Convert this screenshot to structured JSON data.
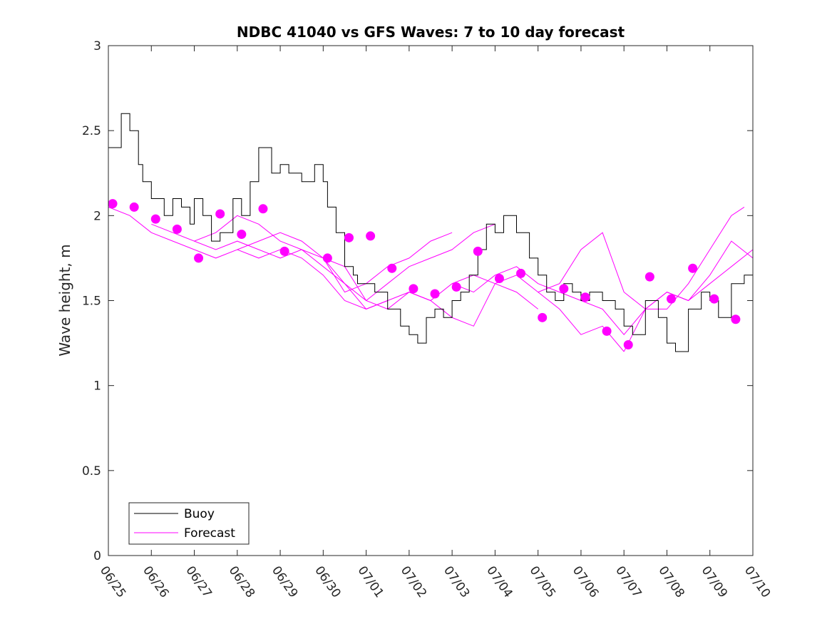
{
  "chart_data": {
    "type": "line",
    "title": "NDBC 41040 vs GFS Waves: 7 to 10 day forecast",
    "xlabel": "",
    "ylabel": "Wave height, m",
    "ylim": [
      0,
      3
    ],
    "yticks": [
      "0",
      "0.5",
      "1",
      "1.5",
      "2",
      "2.5",
      "3"
    ],
    "xlim_days": [
      0,
      15
    ],
    "xticks": [
      "06/25",
      "06/26",
      "06/27",
      "06/28",
      "06/29",
      "06/30",
      "07/01",
      "07/02",
      "07/03",
      "07/04",
      "07/05",
      "07/06",
      "07/07",
      "07/08",
      "07/09",
      "07/10"
    ],
    "grid": false,
    "legend": {
      "placement": "bottom-left",
      "entries": [
        "Buoy",
        "Forecast"
      ]
    },
    "colors": {
      "buoy": "#000000",
      "forecast": "#ff00ff"
    },
    "buoy_x": [
      0,
      0.3,
      0.5,
      0.7,
      0.8,
      1.0,
      1.3,
      1.5,
      1.7,
      1.9,
      2.0,
      2.2,
      2.4,
      2.6,
      2.9,
      3.1,
      3.3,
      3.5,
      3.8,
      4.0,
      4.2,
      4.5,
      4.8,
      5.0,
      5.1,
      5.3,
      5.5,
      5.7,
      5.8,
      6.0,
      6.2,
      6.5,
      6.8,
      7.0,
      7.2,
      7.4,
      7.6,
      7.8,
      8.0,
      8.2,
      8.4,
      8.6,
      8.8,
      9.0,
      9.2,
      9.5,
      9.8,
      10.0,
      10.2,
      10.4,
      10.6,
      10.8,
      11.0,
      11.2,
      11.5,
      11.8,
      12.0,
      12.2,
      12.5,
      12.8,
      13.0,
      13.2,
      13.5,
      13.8,
      14.0,
      14.2,
      14.5,
      14.8,
      15.0
    ],
    "buoy_y": [
      2.4,
      2.6,
      2.5,
      2.3,
      2.2,
      2.1,
      2.0,
      2.1,
      2.05,
      1.95,
      2.1,
      2.0,
      1.85,
      1.9,
      2.1,
      2.0,
      2.2,
      2.4,
      2.25,
      2.3,
      2.25,
      2.2,
      2.3,
      2.2,
      2.05,
      1.9,
      1.7,
      1.65,
      1.6,
      1.6,
      1.55,
      1.45,
      1.35,
      1.3,
      1.25,
      1.4,
      1.45,
      1.4,
      1.5,
      1.55,
      1.65,
      1.8,
      1.95,
      1.9,
      2.0,
      1.9,
      1.75,
      1.65,
      1.55,
      1.5,
      1.6,
      1.55,
      1.5,
      1.55,
      1.5,
      1.45,
      1.35,
      1.3,
      1.5,
      1.4,
      1.25,
      1.2,
      1.45,
      1.55,
      1.5,
      1.4,
      1.6,
      1.65,
      1.7
    ],
    "forecast_runs": [
      {
        "x": [
          0,
          0.5,
          1.0,
          1.5,
          2.0,
          2.5,
          3.0,
          3.5,
          4.0,
          4.5,
          5.0,
          5.5,
          6.0,
          6.5
        ],
        "y": [
          2.05,
          2.0,
          1.9,
          1.85,
          1.8,
          1.75,
          1.8,
          1.75,
          1.8,
          1.75,
          1.65,
          1.5,
          1.45,
          1.5
        ]
      },
      {
        "x": [
          1.0,
          1.5,
          2.0,
          2.5,
          3.0,
          3.5,
          4.0,
          4.5,
          5.0,
          5.5,
          6.0,
          6.5,
          7.0,
          7.5,
          8.0
        ],
        "y": [
          1.95,
          1.9,
          1.85,
          1.9,
          2.0,
          1.95,
          1.85,
          1.8,
          1.75,
          1.55,
          1.6,
          1.7,
          1.75,
          1.85,
          1.9
        ]
      },
      {
        "x": [
          2.0,
          2.5,
          3.0,
          3.5,
          4.0,
          4.5,
          5.0,
          5.5,
          6.0,
          6.5,
          7.0,
          7.5,
          8.0,
          8.5,
          9.0
        ],
        "y": [
          1.85,
          1.8,
          1.85,
          1.8,
          1.75,
          1.8,
          1.7,
          1.6,
          1.5,
          1.6,
          1.7,
          1.75,
          1.8,
          1.9,
          1.95
        ]
      },
      {
        "x": [
          3.0,
          3.5,
          4.0,
          4.5,
          5.0,
          5.5,
          6.0,
          6.5,
          7.0,
          7.5,
          8.0,
          8.5,
          9.0,
          9.5,
          10.0
        ],
        "y": [
          1.8,
          1.85,
          1.9,
          1.85,
          1.75,
          1.6,
          1.45,
          1.5,
          1.55,
          1.5,
          1.6,
          1.65,
          1.6,
          1.55,
          1.45
        ]
      },
      {
        "x": [
          5.0,
          5.5,
          6.0,
          6.5,
          7.0,
          7.5,
          8.0,
          8.5,
          9.0,
          9.5,
          10.0,
          10.5,
          11.0,
          11.5,
          12.0
        ],
        "y": [
          1.75,
          1.7,
          1.5,
          1.45,
          1.55,
          1.5,
          1.4,
          1.35,
          1.6,
          1.65,
          1.55,
          1.45,
          1.3,
          1.35,
          1.2
        ]
      },
      {
        "x": [
          8.0,
          8.5,
          9.0,
          9.5,
          10.0,
          10.5,
          11.0,
          11.5,
          12.0,
          12.5,
          13.0,
          13.5,
          14.0,
          14.5,
          15.0
        ],
        "y": [
          1.6,
          1.55,
          1.65,
          1.7,
          1.6,
          1.55,
          1.5,
          1.45,
          1.3,
          1.45,
          1.55,
          1.5,
          1.6,
          1.7,
          1.8
        ]
      },
      {
        "x": [
          10.0,
          10.5,
          11.0,
          11.5,
          12.0,
          12.5,
          13.0,
          13.5,
          14.0,
          14.5,
          14.8
        ],
        "y": [
          1.55,
          1.6,
          1.8,
          1.9,
          1.55,
          1.45,
          1.45,
          1.6,
          1.8,
          2.0,
          2.05
        ]
      },
      {
        "x": [
          12.0,
          12.5,
          13.0,
          13.5,
          14.0,
          14.5,
          15.0
        ],
        "y": [
          1.2,
          1.45,
          1.55,
          1.5,
          1.65,
          1.85,
          1.75
        ]
      }
    ],
    "forecast_points": {
      "x": [
        0.1,
        0.6,
        1.1,
        1.6,
        2.1,
        2.6,
        3.1,
        3.6,
        4.1,
        5.1,
        5.6,
        6.1,
        6.6,
        7.1,
        7.6,
        8.1,
        8.6,
        9.1,
        9.6,
        10.1,
        10.6,
        11.1,
        11.6,
        12.1,
        12.6,
        13.1,
        13.6,
        14.1,
        14.6
      ],
      "y": [
        2.07,
        2.05,
        1.98,
        1.92,
        1.75,
        2.01,
        1.89,
        2.04,
        1.79,
        1.75,
        1.87,
        1.88,
        1.69,
        1.57,
        1.54,
        1.58,
        1.79,
        1.63,
        1.66,
        1.4,
        1.57,
        1.52,
        1.32,
        1.24,
        1.64,
        1.51,
        1.69,
        1.51,
        1.39
      ]
    }
  }
}
